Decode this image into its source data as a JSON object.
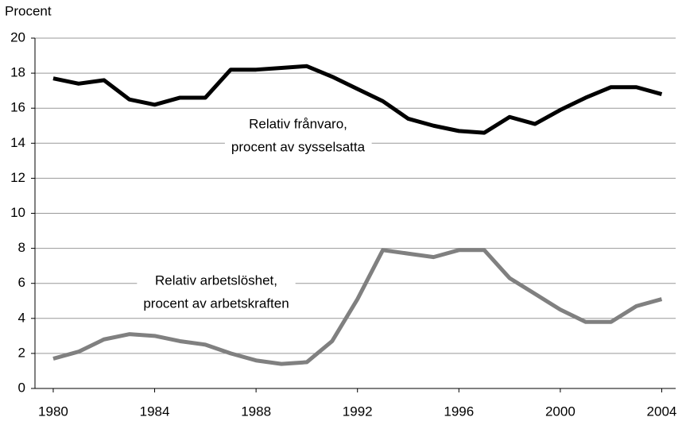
{
  "chart_data": {
    "type": "line",
    "y_axis_label": "Procent",
    "x": [
      1980,
      1981,
      1982,
      1983,
      1984,
      1985,
      1986,
      1987,
      1988,
      1989,
      1990,
      1991,
      1992,
      1993,
      1994,
      1995,
      1996,
      1997,
      1998,
      1999,
      2000,
      2001,
      2002,
      2003,
      2004
    ],
    "series": [
      {
        "color": "#000000",
        "values": [
          17.7,
          17.4,
          17.6,
          16.5,
          16.2,
          16.6,
          16.6,
          18.2,
          18.2,
          18.3,
          18.4,
          17.8,
          17.1,
          16.4,
          15.4,
          15.0,
          14.7,
          14.6,
          15.5,
          15.1,
          15.9,
          16.6,
          17.2,
          17.2,
          16.8
        ]
      },
      {
        "color": "#808080",
        "values": [
          1.7,
          2.1,
          2.8,
          3.1,
          3.0,
          2.7,
          2.5,
          2.0,
          1.6,
          1.4,
          1.5,
          2.7,
          5.1,
          7.9,
          7.7,
          7.5,
          7.9,
          7.9,
          6.3,
          5.4,
          4.5,
          3.8,
          3.8,
          4.7,
          5.1
        ]
      }
    ],
    "annotations": [
      {
        "lines": [
          "Relativ frånvaro,",
          "procent av sysselsatta"
        ]
      },
      {
        "lines": [
          "Relativ arbetslöshet,",
          "procent av arbetskraften"
        ]
      }
    ],
    "xlim": [
      1979.28,
      2004.55
    ],
    "xticks": [
      1980,
      1984,
      1988,
      1992,
      1996,
      2000,
      2004
    ],
    "ylim": [
      0,
      20
    ],
    "yticks": [
      0,
      2,
      4,
      6,
      8,
      10,
      12,
      14,
      16,
      18,
      20
    ],
    "grid": true
  }
}
